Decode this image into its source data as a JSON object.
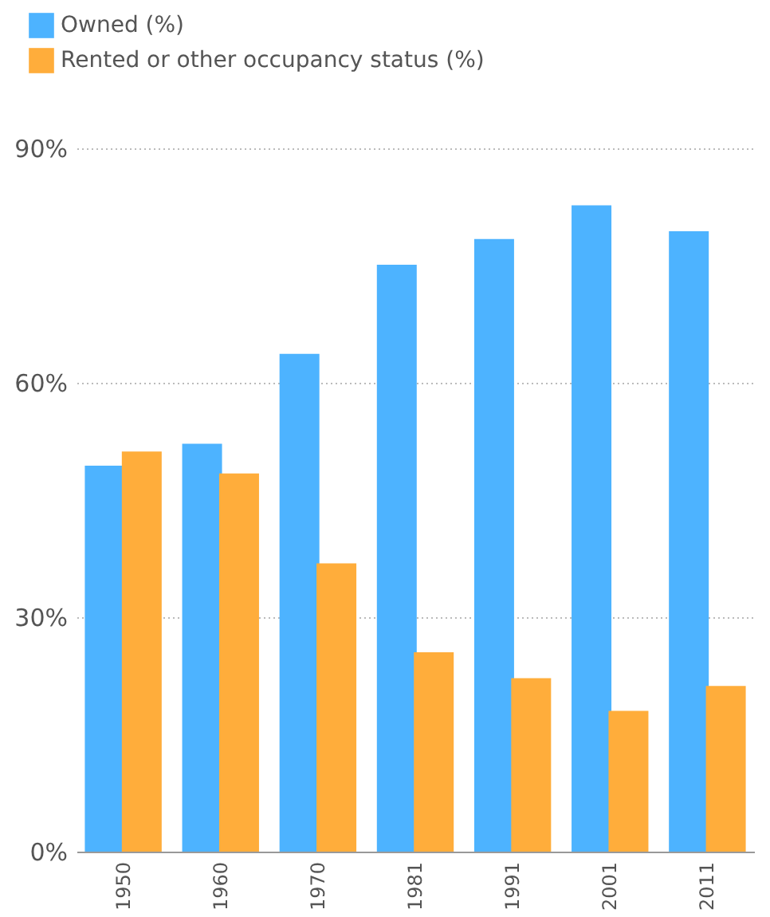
{
  "chart_data": {
    "type": "bar",
    "categories": [
      "1950",
      "1960",
      "1970",
      "1981",
      "1991",
      "2001",
      "2011"
    ],
    "series": [
      {
        "name": "Owned (%)",
        "color": "#4db3ff",
        "values": [
          49.4,
          52.2,
          63.7,
          75.1,
          78.4,
          82.7,
          79.4
        ]
      },
      {
        "name": "Rented or other occupancy status (%)",
        "color": "#ffad3b",
        "values": [
          51.2,
          48.4,
          36.9,
          25.5,
          22.2,
          18.0,
          21.2
        ]
      }
    ],
    "ylim": [
      0,
      90
    ],
    "yticks": [
      {
        "value": 0,
        "label": "0%"
      },
      {
        "value": 30,
        "label": "30%"
      },
      {
        "value": 60,
        "label": "60%"
      },
      {
        "value": 90,
        "label": "90%"
      }
    ],
    "grid": "y",
    "legend": "top left"
  }
}
